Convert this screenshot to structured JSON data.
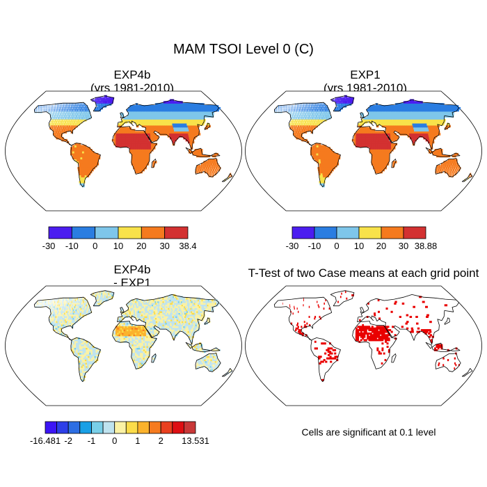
{
  "title": "MAM TSOI Level 0 (C)",
  "panels": [
    {
      "title_line1": "EXP4b",
      "title_line2": "(yrs 1981-2010)",
      "colorbar": {
        "colors": [
          "#4b1df0",
          "#2a7de1",
          "#7ec6ea",
          "#f8e24a",
          "#f57a1e",
          "#d33131"
        ],
        "labels": [
          "-30",
          "-10",
          "0",
          "10",
          "20",
          "30",
          "38.4"
        ]
      }
    },
    {
      "title_line1": "EXP1",
      "title_line2": "(yrs 1981-2010)",
      "colorbar": {
        "colors": [
          "#4b1df0",
          "#2a7de1",
          "#7ec6ea",
          "#f8e24a",
          "#f57a1e",
          "#d33131"
        ],
        "labels": [
          "-30",
          "-10",
          "0",
          "10",
          "20",
          "30",
          "38.88"
        ]
      }
    },
    {
      "title_line1": "EXP4b",
      "title_line2": "- EXP1",
      "colorbar": {
        "colors": [
          "#3c15f5",
          "#2d3fe8",
          "#2d6ee3",
          "#19a0e6",
          "#79cfe8",
          "#bfe3ef",
          "#fbf2a5",
          "#fbdc4a",
          "#fbb22c",
          "#f67b1f",
          "#e9401f",
          "#de0f13",
          "#c93838"
        ],
        "labels": [
          "-16.481",
          "-2",
          "-1",
          "0",
          "1",
          "2",
          "13.531"
        ]
      }
    },
    {
      "title": "T-Test of two Case means at each grid point",
      "note": "Cells are significant at 0.1 level",
      "sig_color": "#e90000"
    }
  ]
}
